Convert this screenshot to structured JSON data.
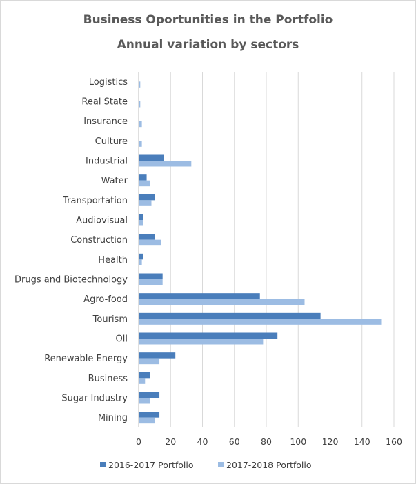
{
  "chart_data": {
    "type": "bar",
    "orientation": "horizontal",
    "title": "Business Oportunities in the Portfolio",
    "subtitle": "Annual variation by sectors",
    "categories": [
      "Logistics",
      "Real State",
      "Insurance",
      "Culture",
      "Industrial",
      "Water",
      "Transportation",
      "Audiovisual",
      "Construction",
      "Health",
      "Drugs and Biotechnology",
      "Agro-food",
      "Tourism",
      "Oil",
      "Renewable Energy",
      "Business",
      "Sugar Industry",
      "Mining"
    ],
    "series": [
      {
        "name": "2016-2017 Portfolio",
        "color": "#4a7ebb",
        "values": [
          0,
          0,
          0,
          0,
          16,
          5,
          10,
          3,
          10,
          3,
          15,
          76,
          114,
          87,
          23,
          7,
          13,
          13
        ]
      },
      {
        "name": "2017-2018 Portfolio",
        "color": "#9cbce3",
        "values": [
          1,
          1,
          2,
          2,
          33,
          7,
          8,
          3,
          14,
          2,
          15,
          104,
          152,
          78,
          13,
          4,
          7,
          10
        ]
      }
    ],
    "xlim": [
      0,
      160
    ],
    "xticks": [
      "0",
      "20",
      "40",
      "60",
      "80",
      "100",
      "120",
      "140",
      "160"
    ],
    "grid": true,
    "legend_position": "bottom"
  }
}
